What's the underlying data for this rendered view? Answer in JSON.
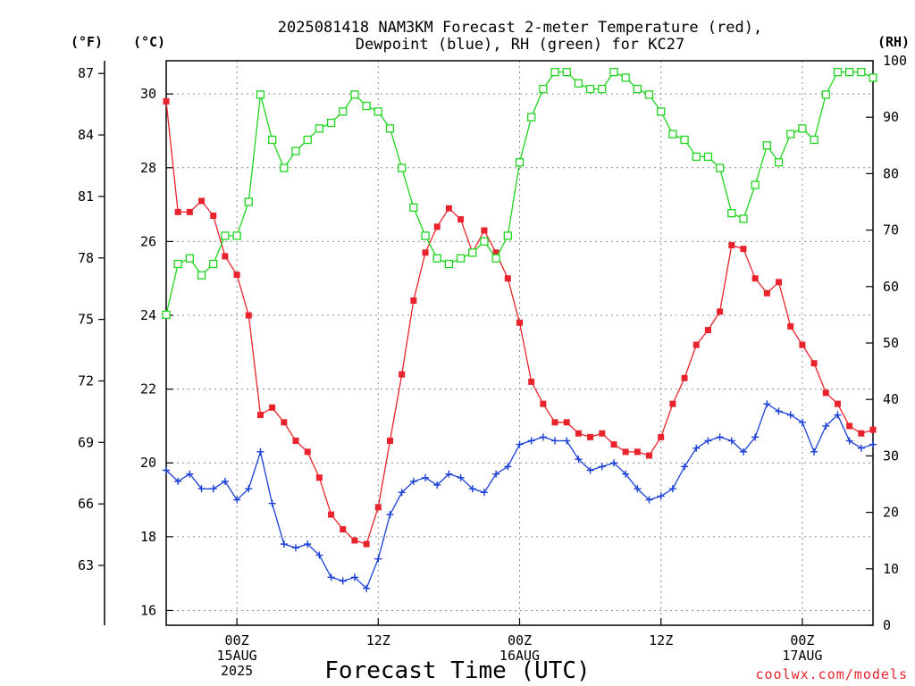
{
  "chart_data": {
    "type": "line",
    "title": [
      "2025081418 NAM3KM Forecast 2-meter Temperature (red),",
      "Dewpoint (blue), RH (green) for KC27"
    ],
    "xlabel": "Forecast Time (UTC)",
    "credit": "coolwx.com/models",
    "units": {
      "fahrenheit": "(°F)",
      "celsius": "(°C)",
      "rh": "(RH)"
    },
    "x_ticks": [
      {
        "hour": 6,
        "lines": [
          "00Z",
          "15AUG",
          "2025"
        ]
      },
      {
        "hour": 18,
        "lines": [
          "12Z"
        ]
      },
      {
        "hour": 30,
        "lines": [
          "00Z",
          "16AUG"
        ]
      },
      {
        "hour": 42,
        "lines": [
          "12Z"
        ]
      },
      {
        "hour": 54,
        "lines": [
          "00Z",
          "17AUG"
        ]
      }
    ],
    "x_range": [
      0,
      60
    ],
    "celsius_range": [
      15.6,
      30.9
    ],
    "celsius_ticks": [
      16,
      18,
      20,
      22,
      24,
      26,
      28,
      30
    ],
    "fahrenheit_ticks": [
      63,
      66,
      69,
      72,
      75,
      78,
      81,
      84,
      87
    ],
    "rh_range": [
      0,
      100
    ],
    "rh_ticks": [
      0,
      10,
      20,
      30,
      40,
      50,
      60,
      70,
      80,
      90,
      100
    ],
    "grid": true,
    "x": [
      0,
      1,
      2,
      3,
      4,
      5,
      6,
      7,
      8,
      9,
      10,
      11,
      12,
      13,
      14,
      15,
      16,
      17,
      18,
      19,
      20,
      21,
      22,
      23,
      24,
      25,
      26,
      27,
      28,
      29,
      30,
      31,
      32,
      33,
      34,
      35,
      36,
      37,
      38,
      39,
      40,
      41,
      42,
      43,
      44,
      45,
      46,
      47,
      48,
      49,
      50,
      51,
      52,
      53,
      54,
      55,
      56,
      57,
      58,
      59,
      60
    ],
    "series": [
      {
        "color": "#e8232b",
        "marker": "filled-square",
        "axis": "celsius",
        "values": [
          29.8,
          26.8,
          26.8,
          27.1,
          26.7,
          25.6,
          25.1,
          24.0,
          21.3,
          21.5,
          21.1,
          20.6,
          20.3,
          19.6,
          18.6,
          18.2,
          17.9,
          17.8,
          18.8,
          20.6,
          22.4,
          24.4,
          25.7,
          26.4,
          26.9,
          26.6,
          25.7,
          26.3,
          25.7,
          25.0,
          23.8,
          22.2,
          21.6,
          21.1,
          21.1,
          20.8,
          20.7,
          20.8,
          20.5,
          20.3,
          20.3,
          20.2,
          20.7,
          21.6,
          22.3,
          23.2,
          23.6,
          24.1,
          25.9,
          25.8,
          25.0,
          24.6,
          24.9,
          23.7,
          23.2,
          22.7,
          21.9,
          21.6,
          21.0,
          20.8,
          20.9
        ]
      },
      {
        "color": "#1a3fd6",
        "marker": "plus",
        "axis": "celsius",
        "values": [
          19.8,
          19.5,
          19.7,
          19.3,
          19.3,
          19.5,
          19.0,
          19.3,
          20.3,
          18.9,
          17.8,
          17.7,
          17.8,
          17.5,
          16.9,
          16.8,
          16.9,
          16.6,
          17.4,
          18.6,
          19.2,
          19.5,
          19.6,
          19.4,
          19.7,
          19.6,
          19.3,
          19.2,
          19.7,
          19.9,
          20.5,
          20.6,
          20.7,
          20.6,
          20.6,
          20.1,
          19.8,
          19.9,
          20.0,
          19.7,
          19.3,
          19.0,
          19.1,
          19.3,
          19.9,
          20.4,
          20.6,
          20.7,
          20.6,
          20.3,
          20.7,
          21.6,
          21.4,
          21.3,
          21.1,
          20.3,
          21.0,
          21.3,
          20.6,
          20.4,
          20.5
        ]
      },
      {
        "color": "#1fd41f",
        "marker": "open-square",
        "axis": "rh",
        "values": [
          55,
          64,
          65,
          62,
          64,
          69,
          69,
          75,
          94,
          86,
          81,
          84,
          86,
          88,
          89,
          91,
          94,
          92,
          91,
          88,
          81,
          74,
          69,
          65,
          64,
          65,
          66,
          68,
          65,
          69,
          82,
          90,
          95,
          98,
          98,
          96,
          95,
          95,
          98,
          97,
          95,
          94,
          91,
          87,
          86,
          83,
          83,
          81,
          73,
          72,
          78,
          85,
          82,
          87,
          88,
          86,
          94,
          98,
          98,
          98,
          97
        ]
      }
    ]
  }
}
